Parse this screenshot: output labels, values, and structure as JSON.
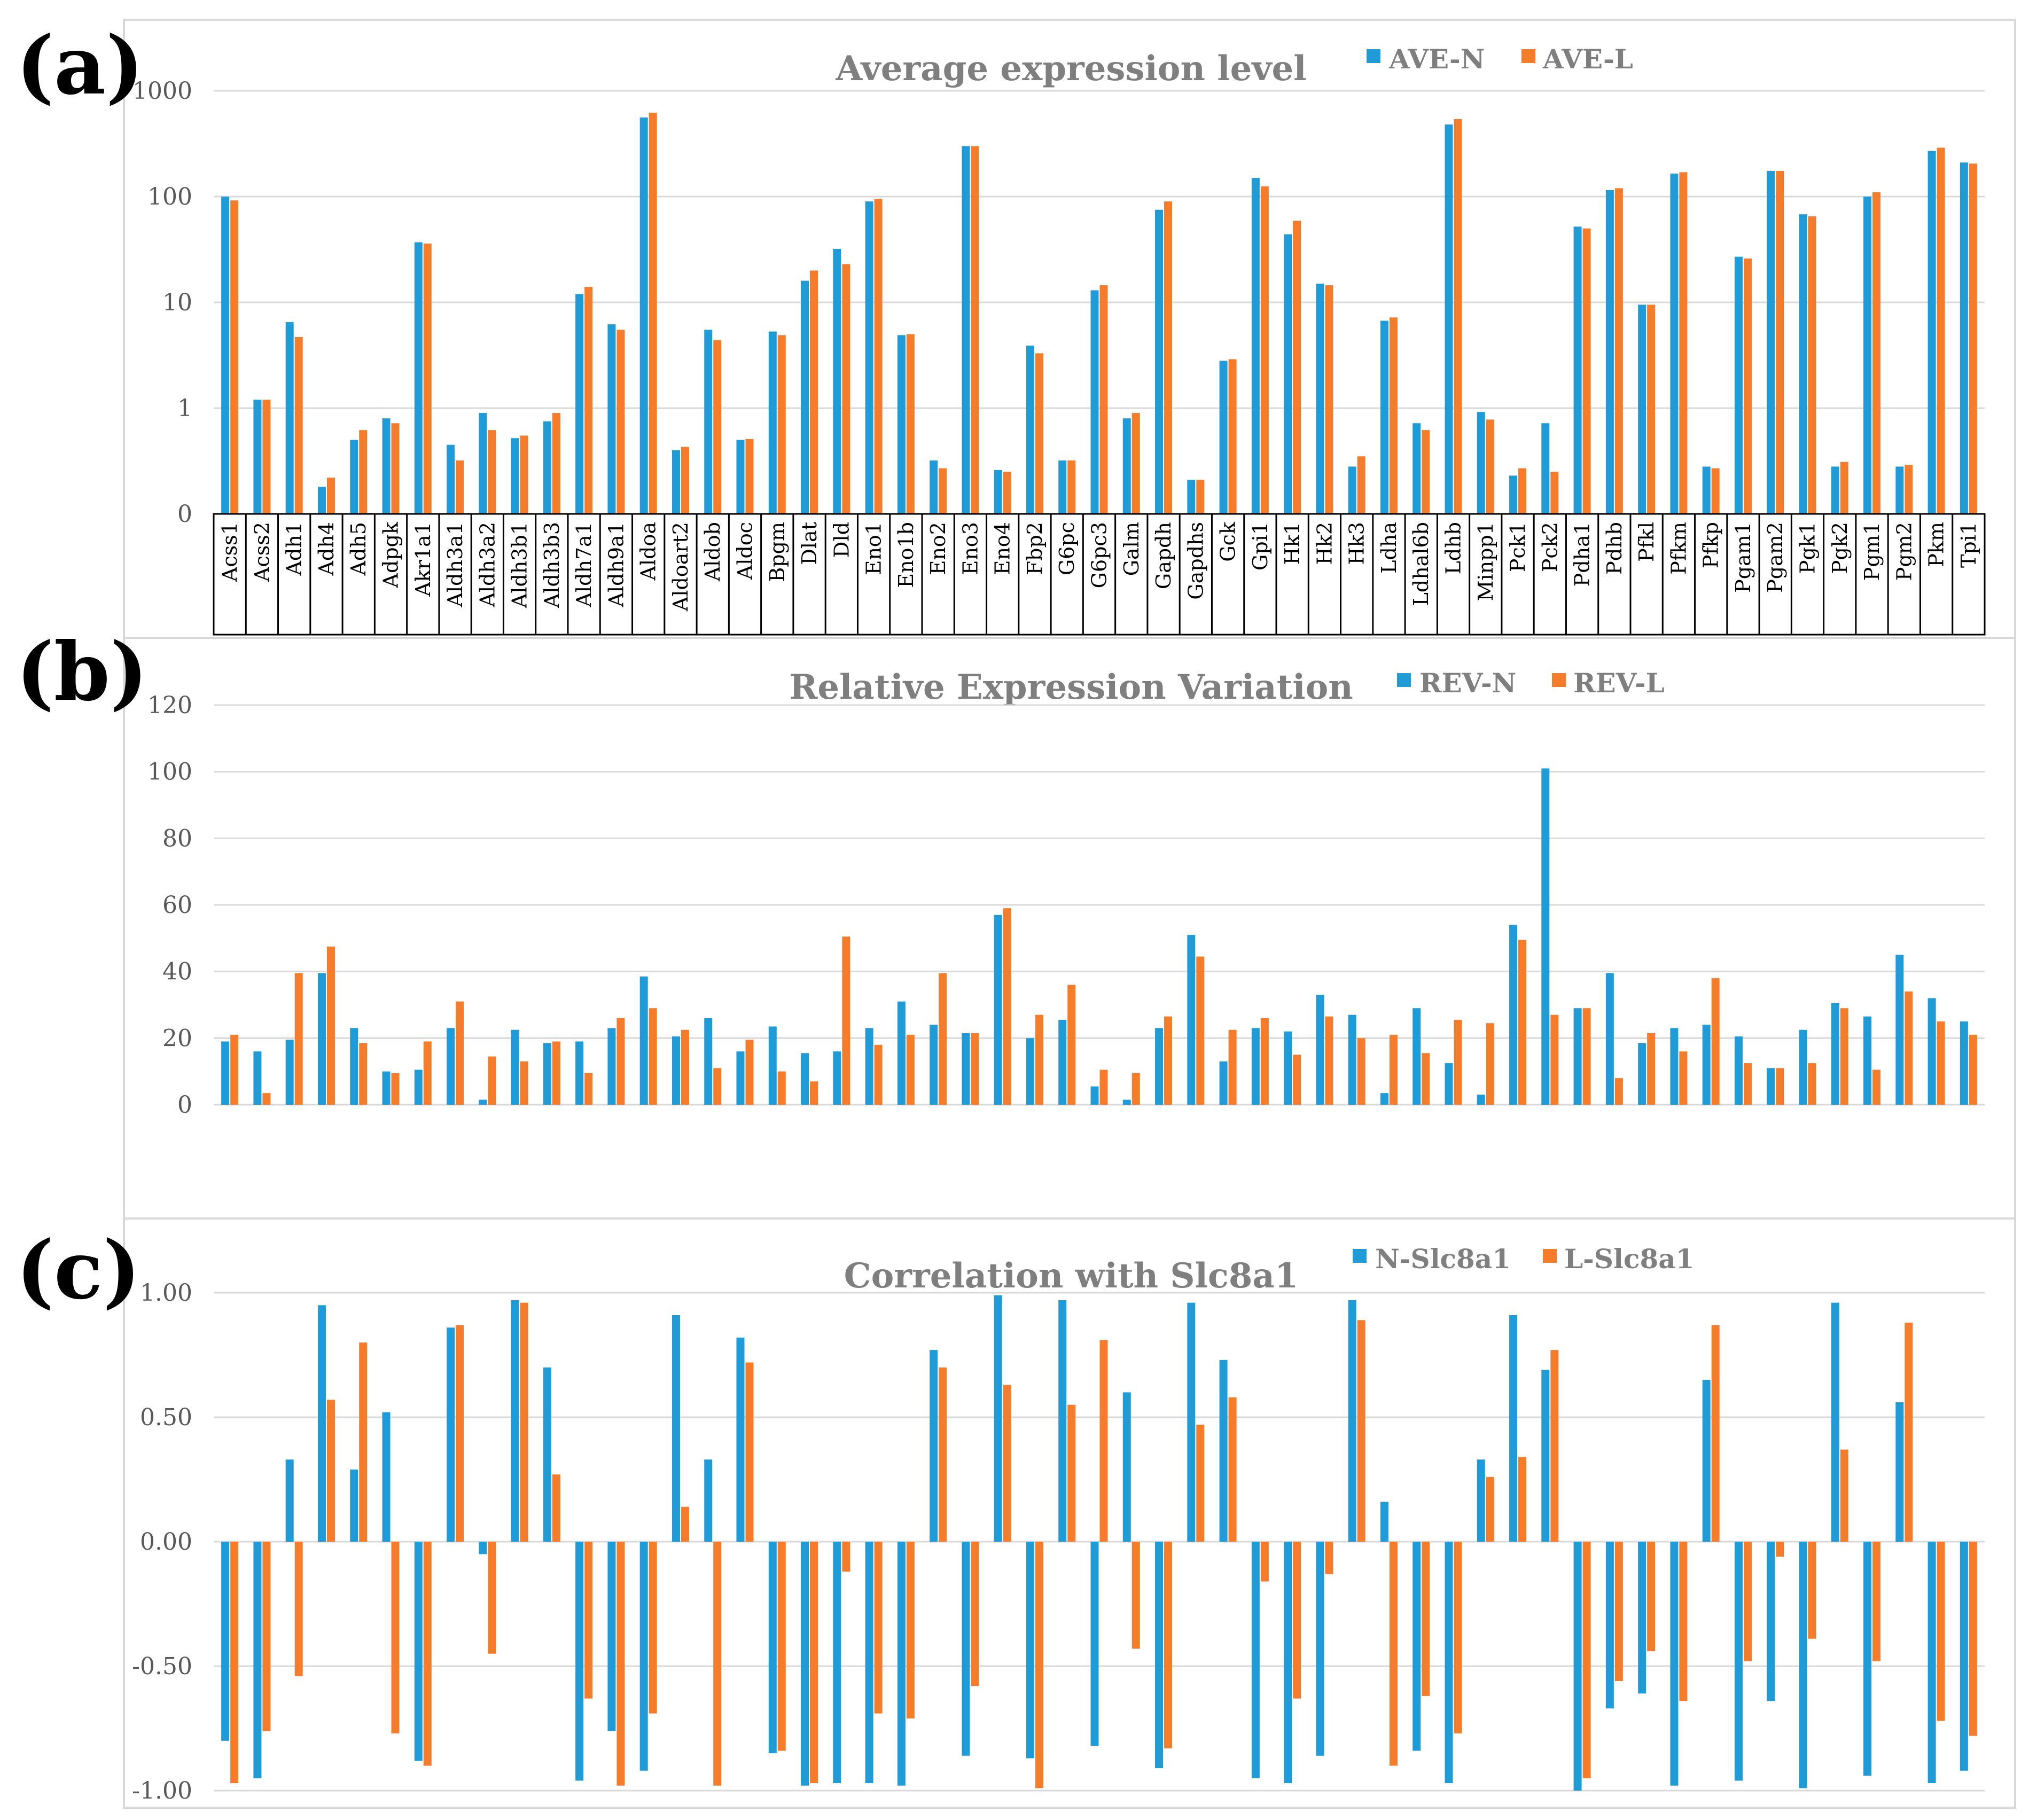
{
  "panels": [
    {
      "label": "(a)",
      "title": "Average expression level",
      "legend": [
        "AVE-N",
        "AVE-L"
      ]
    },
    {
      "label": "(b)",
      "title": "Relative Expression Variation",
      "legend": [
        "REV-N",
        "REV-L"
      ]
    },
    {
      "label": "(c)",
      "title": "Correlation with Slc8a1",
      "legend": [
        "N-Slc8a1",
        "L-Slc8a1"
      ]
    }
  ],
  "colors": {
    "series_n": "#1f9bd7",
    "series_l": "#f47c2a",
    "grid": "#d9d9d9",
    "frame": "#d9d9d9"
  },
  "chart_data": [
    {
      "type": "bar",
      "title": "Average expression level",
      "yscale": "log",
      "yticks": [
        "0",
        "1",
        "10",
        "100",
        "1000"
      ],
      "legend_position": "top-right",
      "categories": [
        "Acss1",
        "Acss2",
        "Adh1",
        "Adh4",
        "Adh5",
        "Adpgk",
        "Akr1a1",
        "Aldh3a1",
        "Aldh3a2",
        "Aldh3b1",
        "Aldh3b3",
        "Aldh7a1",
        "Aldh9a1",
        "Aldoa",
        "Aldoart2",
        "Aldob",
        "Aldoc",
        "Bpgm",
        "Dlat",
        "Dld",
        "Eno1",
        "Eno1b",
        "Eno2",
        "Eno3",
        "Eno4",
        "Fbp2",
        "G6pc",
        "G6pc3",
        "Galm",
        "Gapdh",
        "Gapdhs",
        "Gck",
        "Gpi1",
        "Hk1",
        "Hk2",
        "Hk3",
        "Ldha",
        "Ldhal6b",
        "Ldhb",
        "Minpp1",
        "Pck1",
        "Pck2",
        "Pdha1",
        "Pdhb",
        "Pfkl",
        "Pfkm",
        "Pfkp",
        "Pgam1",
        "Pgam2",
        "Pgk1",
        "Pgk2",
        "Pgm1",
        "Pgm2",
        "Pkm",
        "Tpi1"
      ],
      "series": [
        {
          "name": "AVE-N",
          "values": [
            100,
            1.2,
            6.5,
            0.18,
            0.5,
            0.8,
            37,
            0.45,
            0.9,
            0.52,
            0.75,
            12,
            6.2,
            560,
            0.4,
            5.5,
            0.5,
            5.3,
            16,
            32,
            90,
            4.9,
            0.32,
            300,
            0.26,
            3.9,
            0.32,
            13,
            0.8,
            75,
            0.21,
            2.8,
            150,
            44,
            15,
            0.28,
            6.7,
            0.72,
            480,
            0.92,
            0.23,
            0.72,
            52,
            115,
            9.5,
            165,
            0.28,
            27,
            175,
            68,
            0.28,
            100,
            0.28,
            270,
            210
          ]
        },
        {
          "name": "AVE-L",
          "values": [
            92,
            1.2,
            4.7,
            0.22,
            0.62,
            0.72,
            36,
            0.32,
            0.62,
            0.55,
            0.9,
            14,
            5.5,
            620,
            0.43,
            4.4,
            0.51,
            4.9,
            20,
            23,
            95,
            5.0,
            0.27,
            300,
            0.25,
            3.3,
            0.32,
            14.5,
            0.9,
            90,
            0.21,
            2.9,
            125,
            59,
            14.5,
            0.35,
            7.2,
            0.62,
            540,
            0.78,
            0.27,
            0.25,
            50,
            120,
            9.5,
            170,
            0.27,
            26,
            175,
            65,
            0.31,
            110,
            0.29,
            290,
            205
          ]
        }
      ]
    },
    {
      "type": "bar",
      "title": "Relative Expression Variation",
      "ylim": [
        0,
        120
      ],
      "yticks": [
        "0",
        "20",
        "40",
        "60",
        "80",
        "100",
        "120"
      ],
      "legend_position": "top-right",
      "categories": [
        "Acss1",
        "Acss2",
        "Adh1",
        "Adh4",
        "Adh5",
        "Adpgk",
        "Akr1a1",
        "Aldh3a1",
        "Aldh3a2",
        "Aldh3b1",
        "Aldh3b3",
        "Aldh7a1",
        "Aldh9a1",
        "Aldoa",
        "Aldoart2",
        "Aldob",
        "Aldoc",
        "Bpgm",
        "Dlat",
        "Dld",
        "Eno1",
        "Eno1b",
        "Eno2",
        "Eno3",
        "Eno4",
        "Fbp2",
        "G6pc",
        "G6pc3",
        "Galm",
        "Gapdh",
        "Gapdhs",
        "Gck",
        "Gpi1",
        "Hk1",
        "Hk2",
        "Hk3",
        "Ldha",
        "Ldhal6b",
        "Ldhb",
        "Minpp1",
        "Pck1",
        "Pck2",
        "Pdha1",
        "Pdhb",
        "Pfkl",
        "Pfkm",
        "Pfkp",
        "Pgam1",
        "Pgam2",
        "Pgk1",
        "Pgk2",
        "Pgm1",
        "Pgm2",
        "Pkm",
        "Tpi1"
      ],
      "series": [
        {
          "name": "REV-N",
          "values": [
            19,
            16,
            19.5,
            39.5,
            23,
            10,
            10.5,
            23,
            1.5,
            22.5,
            18.5,
            19,
            23,
            38.5,
            20.5,
            26,
            16,
            23.5,
            15.5,
            16,
            23,
            31,
            24,
            21.5,
            57,
            20,
            25.5,
            5.5,
            1.5,
            23,
            51,
            13,
            23,
            22,
            33,
            27,
            3.5,
            29,
            12.5,
            3,
            54,
            101,
            29,
            39.5,
            18.5,
            23,
            24,
            20.5,
            11,
            22.5,
            30.5,
            26.5,
            45,
            32,
            25
          ]
        },
        {
          "name": "REV-L",
          "values": [
            21,
            3.5,
            39.5,
            47.5,
            18.5,
            9.5,
            19,
            31,
            14.5,
            13,
            19,
            9.5,
            26,
            29,
            22.5,
            11,
            19.5,
            10,
            7,
            50.5,
            18,
            21,
            39.5,
            21.5,
            59,
            27,
            36,
            10.5,
            9.5,
            26.5,
            44.5,
            22.5,
            26,
            15,
            26.5,
            20,
            21,
            15.5,
            25.5,
            24.5,
            49.5,
            27,
            29,
            8,
            21.5,
            16,
            38,
            12.5,
            11,
            12.5,
            29,
            10.5,
            34,
            25,
            21
          ]
        }
      ]
    },
    {
      "type": "bar",
      "title": "Correlation with Slc8a1",
      "ylim": [
        -1.0,
        1.0
      ],
      "yticks": [
        "-1.00",
        "-0.50",
        "0.00",
        "0.50",
        "1.00"
      ],
      "legend_position": "top-right",
      "categories": [
        "Acss1",
        "Acss2",
        "Adh1",
        "Adh4",
        "Adh5",
        "Adpgk",
        "Akr1a1",
        "Aldh3a1",
        "Aldh3a2",
        "Aldh3b1",
        "Aldh3b3",
        "Aldh7a1",
        "Aldh9a1",
        "Aldoa",
        "Aldoart2",
        "Aldob",
        "Aldoc",
        "Bpgm",
        "Dlat",
        "Dld",
        "Eno1",
        "Eno1b",
        "Eno2",
        "Eno3",
        "Eno4",
        "Fbp2",
        "G6pc",
        "G6pc3",
        "Galm",
        "Gapdh",
        "Gapdhs",
        "Gck",
        "Gpi1",
        "Hk1",
        "Hk2",
        "Hk3",
        "Ldha",
        "Ldhal6b",
        "Ldhb",
        "Minpp1",
        "Pck1",
        "Pck2",
        "Pdha1",
        "Pdhb",
        "Pfkl",
        "Pfkm",
        "Pfkp",
        "Pgam1",
        "Pgam2",
        "Pgk1",
        "Pgk2",
        "Pgm1",
        "Pgm2",
        "Pkm",
        "Tpi1"
      ],
      "series": [
        {
          "name": "N-Slc8a1",
          "values": [
            -0.8,
            -0.95,
            0.33,
            0.95,
            0.29,
            0.52,
            -0.88,
            0.86,
            -0.05,
            0.97,
            0.7,
            -0.96,
            -0.76,
            -0.92,
            0.91,
            0.33,
            0.82,
            -0.85,
            -0.98,
            -0.97,
            -0.97,
            -0.98,
            0.77,
            -0.86,
            0.99,
            -0.87,
            0.97,
            -0.82,
            0.6,
            -0.91,
            0.96,
            0.73,
            -0.95,
            -0.97,
            -0.86,
            0.97,
            0.16,
            -0.84,
            -0.97,
            0.33,
            0.91,
            0.69,
            -1.0,
            -0.67,
            -0.61,
            -0.98,
            0.65,
            -0.96,
            -0.64,
            -0.99,
            0.96,
            -0.94,
            0.56,
            -0.97,
            -0.92
          ]
        },
        {
          "name": "L-Slc8a1",
          "values": [
            -0.97,
            -0.76,
            -0.54,
            0.57,
            0.8,
            -0.77,
            -0.9,
            0.87,
            -0.45,
            0.96,
            0.27,
            -0.63,
            -0.98,
            -0.69,
            0.14,
            -0.98,
            0.72,
            -0.84,
            -0.97,
            -0.12,
            -0.69,
            -0.71,
            0.7,
            -0.58,
            0.63,
            -0.99,
            0.55,
            0.81,
            -0.43,
            -0.83,
            0.47,
            0.58,
            -0.16,
            -0.63,
            -0.13,
            0.89,
            -0.9,
            -0.62,
            -0.77,
            0.26,
            0.34,
            0.77,
            -0.95,
            -0.56,
            -0.44,
            -0.64,
            0.87,
            -0.48,
            -0.06,
            -0.39,
            0.37,
            -0.48,
            0.88,
            -0.72,
            -0.78
          ]
        }
      ]
    }
  ]
}
